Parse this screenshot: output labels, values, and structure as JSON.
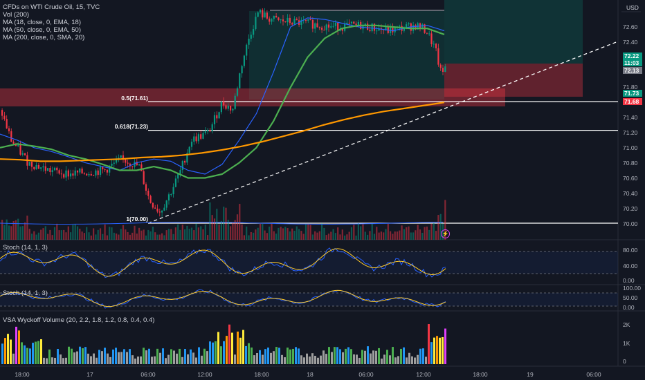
{
  "header": {
    "symbol": "CFDs on WTI Crude Oil, 15, TVC",
    "indicators": [
      "Vol (200)",
      "MA (18, close, 0, EMA, 18)",
      "MA (50, close, 0, EMA, 50)",
      "MA (200, close, 0, SMA, 20)"
    ]
  },
  "currency": "USD",
  "price_axis_labels": [
    "72.60",
    "72.40",
    "71.80",
    "71.40",
    "71.20",
    "71.00",
    "70.80",
    "70.60",
    "70.40",
    "70.20",
    "70.00"
  ],
  "price_tags": [
    {
      "text": "72.22",
      "bg": "#089981",
      "fg": "#ffffff"
    },
    {
      "text": "11:03",
      "bg": "#089981",
      "fg": "#ffffff"
    },
    {
      "text": "72.13",
      "bg": "#787b86",
      "fg": "#ffffff"
    },
    {
      "text": "71.73",
      "bg": "#089981",
      "fg": "#ffffff"
    },
    {
      "text": "71.68",
      "bg": "#f23645",
      "fg": "#ffffff"
    }
  ],
  "fib_levels": [
    {
      "label": "0.5(71.61)",
      "price": 71.61
    },
    {
      "label": "0.618(71.23)",
      "price": 71.23
    },
    {
      "label": "1(70.00)",
      "price": 70.0
    }
  ],
  "panes": {
    "stoch1": {
      "label": "Stoch (14, 1, 3)",
      "axis": [
        "80.00",
        "40.00",
        "0.00"
      ]
    },
    "stoch2": {
      "label": "Stoch (14, 1, 3)",
      "axis": [
        "100.00",
        "50.00",
        "0.00"
      ]
    },
    "vsa": {
      "label": "VSA Wyckoff Volume (20, 2.2, 1.8, 1.2, 0.8, 0.4, 0.4)",
      "axis": [
        "2K",
        "1K",
        "0"
      ]
    }
  },
  "time_axis": [
    "18:00",
    "17",
    "06:00",
    "12:00",
    "18:00",
    "18",
    "06:00",
    "12:00",
    "18:00",
    "19",
    "06:00"
  ],
  "colors": {
    "up": "#089981",
    "down": "#f23645",
    "ema18": "#2962ff",
    "ema50": "#4caf50",
    "sma200": "#ff9800",
    "stoch_k": "#2962ff",
    "stoch_d": "#ffca28",
    "flash_icon": "#e040fb"
  },
  "chart_data": {
    "type": "candlestick",
    "price_range": [
      69.9,
      72.75
    ],
    "series": [
      {
        "name": "MA (18, close, 0, EMA, 18)",
        "values": [
          71.18,
          71.1,
          71.0,
          70.95,
          70.88,
          70.8,
          70.75,
          70.7,
          70.8,
          70.85,
          70.82,
          70.7,
          70.65,
          70.78,
          71.1,
          71.45,
          72.0,
          72.6,
          72.72,
          72.7,
          72.65,
          72.6,
          72.58,
          72.55,
          72.6,
          72.62,
          72.55
        ]
      },
      {
        "name": "MA (50, close, 0, EMA, 50)",
        "values": [
          71.0,
          71.05,
          71.02,
          70.98,
          70.9,
          70.85,
          70.78,
          70.7,
          70.7,
          70.75,
          70.7,
          70.6,
          70.6,
          70.65,
          70.8,
          71.0,
          71.35,
          71.8,
          72.2,
          72.45,
          72.58,
          72.62,
          72.62,
          72.6,
          72.58,
          72.58,
          72.5
        ]
      },
      {
        "name": "MA (200, close, 0, SMA, 20)",
        "values": [
          70.85,
          70.84,
          70.82,
          70.82,
          70.83,
          70.84,
          70.85,
          70.87,
          70.88,
          70.9,
          70.93,
          70.97,
          71.02,
          71.08,
          71.15,
          71.22,
          71.3,
          71.37,
          71.43,
          71.48,
          71.52,
          71.56,
          71.6
        ]
      }
    ]
  }
}
